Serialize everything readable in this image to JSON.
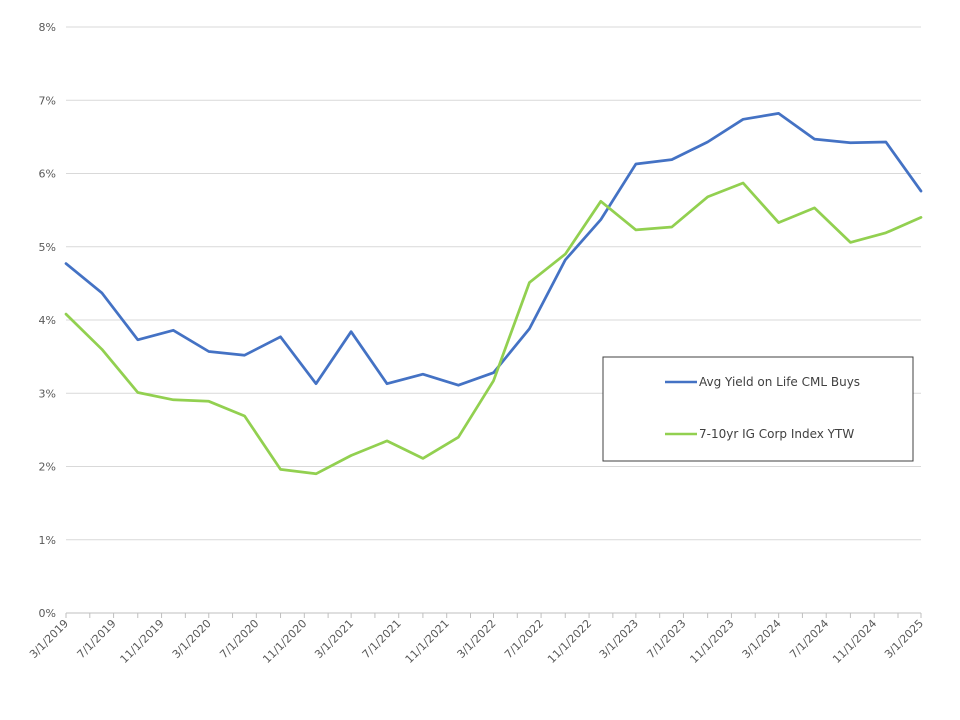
{
  "chart_data": {
    "type": "line",
    "x": [
      "3/1/2019",
      "7/1/2019",
      "11/1/2019",
      "3/1/2020",
      "7/1/2020",
      "11/1/2020",
      "3/1/2021",
      "7/1/2021",
      "11/1/2021",
      "3/1/2022",
      "7/1/2022",
      "11/1/2022",
      "3/1/2023",
      "7/1/2023",
      "11/1/2023",
      "3/1/2024",
      "7/1/2024",
      "11/1/2024",
      "3/1/2025"
    ],
    "x_dates": [
      "2019-03-01",
      "2019-05-01",
      "2019-07-01",
      "2019-09-01",
      "2019-11-01",
      "2020-01-01",
      "2020-03-01",
      "2020-05-01",
      "2020-07-01",
      "2020-09-01",
      "2020-11-01",
      "2021-01-01",
      "2021-03-01",
      "2021-05-01",
      "2021-07-01",
      "2021-09-01",
      "2021-11-01",
      "2022-01-01",
      "2022-03-01",
      "2022-05-01",
      "2022-07-01",
      "2022-09-01",
      "2022-11-01",
      "2023-01-01",
      "2023-03-01",
      "2023-05-01",
      "2023-07-01",
      "2023-09-01",
      "2023-11-01",
      "2024-01-01",
      "2024-03-01",
      "2024-05-01",
      "2024-07-01",
      "2024-09-01",
      "2024-11-01",
      "2025-01-01",
      "2025-03-01"
    ],
    "series": [
      {
        "name": "Avg Yield on Life CML Buys",
        "color": "#4472c4",
        "points": [
          [
            "2019-03-01",
            4.77
          ],
          [
            "2019-06-01",
            4.37
          ],
          [
            "2019-09-01",
            3.73
          ],
          [
            "2019-12-01",
            3.86
          ],
          [
            "2020-03-01",
            3.57
          ],
          [
            "2020-06-01",
            3.52
          ],
          [
            "2020-09-01",
            3.77
          ],
          [
            "2020-12-01",
            3.13
          ],
          [
            "2021-03-01",
            3.84
          ],
          [
            "2021-06-01",
            3.13
          ],
          [
            "2021-09-01",
            3.26
          ],
          [
            "2021-12-01",
            3.11
          ],
          [
            "2022-03-01",
            3.28
          ],
          [
            "2022-06-01",
            3.88
          ],
          [
            "2022-09-01",
            4.82
          ],
          [
            "2022-12-01",
            5.37
          ],
          [
            "2023-03-01",
            6.13
          ],
          [
            "2023-06-01",
            6.19
          ],
          [
            "2023-09-01",
            6.43
          ],
          [
            "2023-12-01",
            6.74
          ],
          [
            "2024-03-01",
            6.82
          ],
          [
            "2024-06-01",
            6.47
          ],
          [
            "2024-09-01",
            6.42
          ],
          [
            "2024-12-01",
            6.43
          ],
          [
            "2025-03-01",
            5.76
          ]
        ]
      },
      {
        "name": "7-10yr IG Corp Index YTW",
        "color": "#92d050",
        "points": [
          [
            "2019-03-01",
            4.08
          ],
          [
            "2019-06-01",
            3.6
          ],
          [
            "2019-09-01",
            3.01
          ],
          [
            "2019-12-01",
            2.91
          ],
          [
            "2020-03-01",
            2.89
          ],
          [
            "2020-06-01",
            2.69
          ],
          [
            "2020-09-01",
            1.96
          ],
          [
            "2020-12-01",
            1.9
          ],
          [
            "2021-03-01",
            2.15
          ],
          [
            "2021-06-01",
            2.35
          ],
          [
            "2021-09-01",
            2.11
          ],
          [
            "2021-12-01",
            2.4
          ],
          [
            "2022-03-01",
            3.17
          ],
          [
            "2022-06-01",
            4.51
          ],
          [
            "2022-09-01",
            4.9
          ],
          [
            "2022-12-01",
            5.62
          ],
          [
            "2023-03-01",
            5.23
          ],
          [
            "2023-06-01",
            5.27
          ],
          [
            "2023-09-01",
            5.68
          ],
          [
            "2023-12-01",
            5.87
          ],
          [
            "2024-03-01",
            5.33
          ],
          [
            "2024-06-01",
            5.53
          ],
          [
            "2024-09-01",
            5.06
          ],
          [
            "2024-12-01",
            5.19
          ],
          [
            "2025-03-01",
            5.4
          ]
        ]
      }
    ],
    "yticks": [
      "0%",
      "1%",
      "2%",
      "3%",
      "4%",
      "5%",
      "6%",
      "7%",
      "8%"
    ],
    "ylim": [
      0,
      8
    ],
    "xlim": [
      "2019-03-01",
      "2025-03-01"
    ],
    "grid": "horizontal",
    "legend_position": "center-right",
    "title": "",
    "xlabel": "",
    "ylabel": ""
  }
}
